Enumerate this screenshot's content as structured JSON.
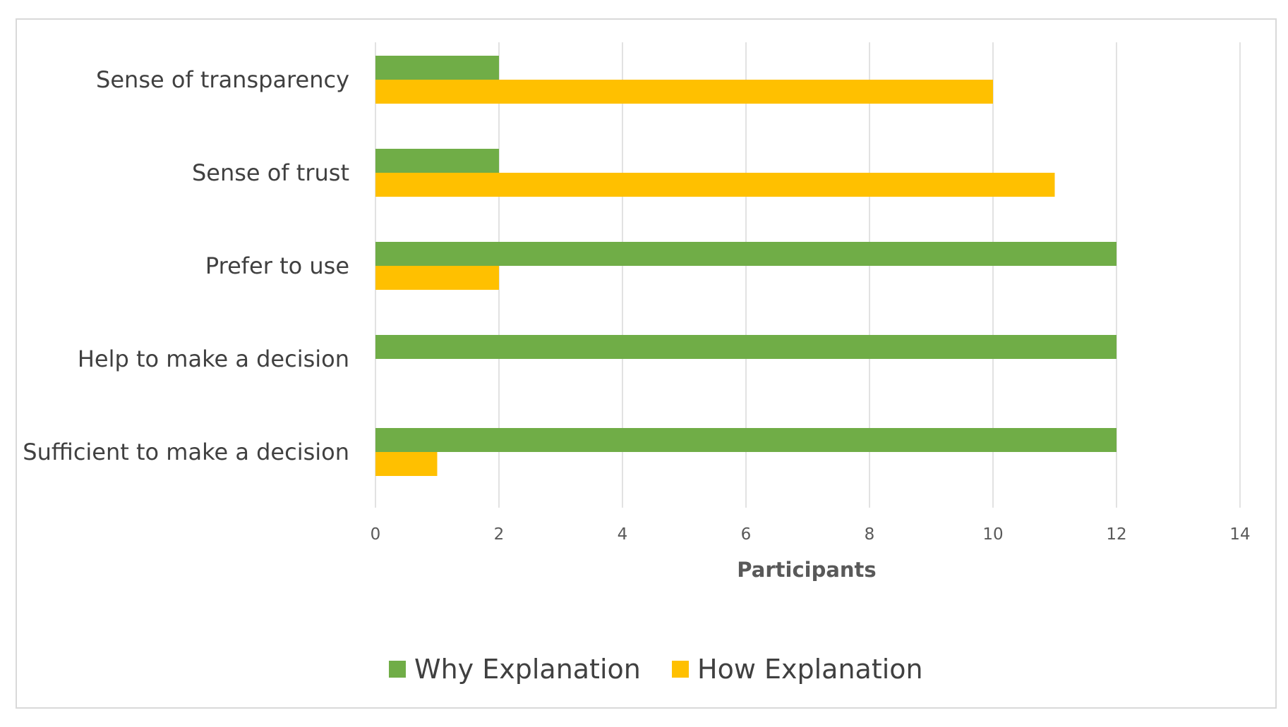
{
  "chart_data": {
    "type": "bar",
    "orientation": "horizontal",
    "categories": [
      "Sense of transparency",
      "Sense of trust",
      "Prefer to use",
      "Help to make a decision",
      "Sufficient to make a decision"
    ],
    "series": [
      {
        "name": "Why Explanation",
        "color": "#70ad47",
        "values": [
          2,
          2,
          12,
          12,
          12
        ]
      },
      {
        "name": "How Explanation",
        "color": "#ffc000",
        "values": [
          10,
          11,
          2,
          0,
          1
        ]
      }
    ],
    "title": "",
    "xlabel": "Participants",
    "ylabel": "",
    "xlim": [
      0,
      14
    ],
    "xticks": [
      "0",
      "2",
      "4",
      "6",
      "8",
      "10",
      "12",
      "14"
    ],
    "grid": true,
    "legend_position": "bottom-center"
  }
}
